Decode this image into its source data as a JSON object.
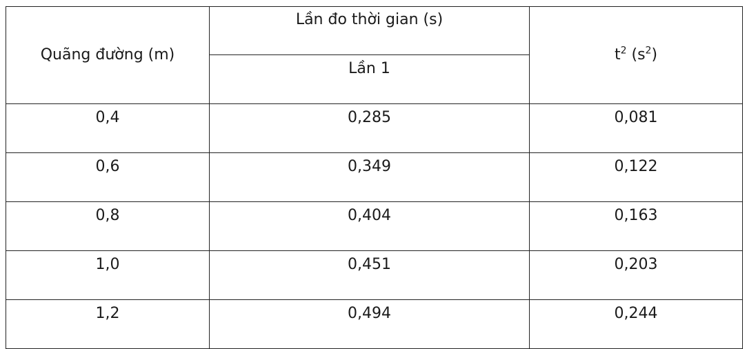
{
  "table": {
    "header": {
      "distance": "Quãng đường (m)",
      "time_group": "Lần đo thời gian (s)",
      "trial_1": "Lần 1",
      "t_squared_base": "t",
      "t_squared_exp": "2",
      "t_squared_unit_open": " (s",
      "t_squared_unit_exp": "2",
      "t_squared_unit_close": ")"
    },
    "rows": [
      {
        "distance": "0,4",
        "time": "0,285",
        "t_squared": "0,081"
      },
      {
        "distance": "0,6",
        "time": "0,349",
        "t_squared": "0,122"
      },
      {
        "distance": "0,8",
        "time": "0,404",
        "t_squared": "0,163"
      },
      {
        "distance": "1,0",
        "time": "0,451",
        "t_squared": "0,203"
      },
      {
        "distance": "1,2",
        "time": "0,494",
        "t_squared": "0,244"
      }
    ]
  }
}
